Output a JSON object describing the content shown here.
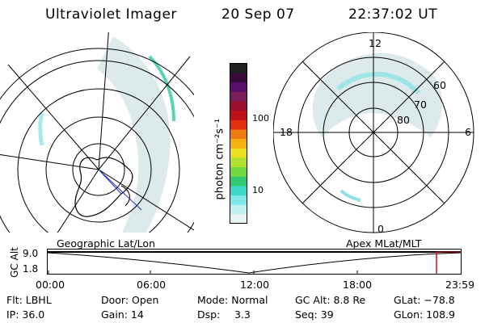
{
  "header": {
    "instrument": "Ultraviolet Imager",
    "date": "20 Sep 07",
    "time": "22:37:02 UT"
  },
  "colorbar": {
    "label": "photon cm⁻²s⁻¹",
    "ticks": [
      "100",
      "10"
    ],
    "colors": [
      "#202020",
      "#3b0a3d",
      "#5a0f6a",
      "#7a1f5a",
      "#9b1030",
      "#c01018",
      "#e03010",
      "#f07a10",
      "#f8b010",
      "#e8e020",
      "#b0e030",
      "#70d840",
      "#30c870",
      "#40d8c8",
      "#80e8e8",
      "#c0f0f0",
      "#e8f4f4"
    ]
  },
  "left_map": {
    "caption": "Geographic Lat/Lon"
  },
  "right_map": {
    "caption": "Apex MLat/MLT",
    "mlt_labels": {
      "top": "12",
      "left": "18",
      "right": "6",
      "bottom": "0"
    },
    "lat_labels": [
      "60",
      "70",
      "80"
    ]
  },
  "timeline": {
    "axis_label": "GC Alt",
    "y_ticks": [
      "9.0",
      "1.8"
    ],
    "x_ticks": [
      "00:00",
      "06:00",
      "12:00",
      "18:00",
      "23:59"
    ]
  },
  "status": {
    "row1": {
      "filter": "Flt: LBHL",
      "door": "Door: Open",
      "mode": "Mode: Normal",
      "gc_alt": "GC Alt: 8.8 Re",
      "glat": "GLat: −78.8"
    },
    "row2": {
      "ip": "IP: 36.0",
      "gain": "Gain: 14",
      "dsp_label": "Dsp:",
      "dsp_value": "3.3",
      "seq": "Seq: 39",
      "glon": "GLon: 108.9"
    }
  }
}
